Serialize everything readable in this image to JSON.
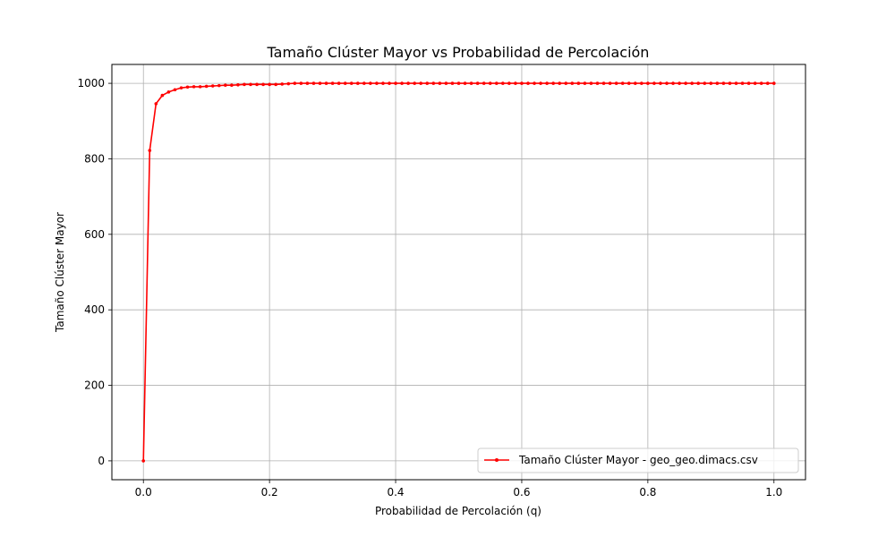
{
  "chart_data": {
    "type": "line",
    "title": "Tamaño Clúster Mayor vs Probabilidad de Percolación",
    "xlabel": "Probabilidad de Percolación (q)",
    "ylabel": "Tamaño Clúster Mayor",
    "xlim": [
      -0.05,
      1.05
    ],
    "ylim": [
      -50,
      1050
    ],
    "xticks": [
      0.0,
      0.2,
      0.4,
      0.6,
      0.8,
      1.0
    ],
    "xtick_labels": [
      "0.0",
      "0.2",
      "0.4",
      "0.6",
      "0.8",
      "1.0"
    ],
    "yticks": [
      0,
      200,
      400,
      600,
      800,
      1000
    ],
    "ytick_labels": [
      "0",
      "200",
      "400",
      "600",
      "800",
      "1000"
    ],
    "grid": true,
    "legend_position": "bottom-right",
    "series": [
      {
        "name": "Tamaño Clúster Mayor - geo_geo.dimacs.csv",
        "color": "#ff0000",
        "marker": "dot",
        "x": [
          0.0,
          0.01,
          0.02,
          0.03,
          0.04,
          0.05,
          0.06,
          0.07,
          0.08,
          0.09,
          0.1,
          0.11,
          0.12,
          0.13,
          0.14,
          0.15,
          0.16,
          0.17,
          0.18,
          0.19,
          0.2,
          0.21,
          0.22,
          0.23,
          0.24,
          0.25,
          0.26,
          0.27,
          0.28,
          0.29,
          0.3,
          0.31,
          0.32,
          0.33,
          0.34,
          0.35,
          0.36,
          0.37,
          0.38,
          0.39,
          0.4,
          0.41,
          0.42,
          0.43,
          0.44,
          0.45,
          0.46,
          0.47,
          0.48,
          0.49,
          0.5,
          0.51,
          0.52,
          0.53,
          0.54,
          0.55,
          0.56,
          0.57,
          0.58,
          0.59,
          0.6,
          0.61,
          0.62,
          0.63,
          0.64,
          0.65,
          0.66,
          0.67,
          0.68,
          0.69,
          0.7,
          0.71,
          0.72,
          0.73,
          0.74,
          0.75,
          0.76,
          0.77,
          0.78,
          0.79,
          0.8,
          0.81,
          0.82,
          0.83,
          0.84,
          0.85,
          0.86,
          0.87,
          0.88,
          0.89,
          0.9,
          0.91,
          0.92,
          0.93,
          0.94,
          0.95,
          0.96,
          0.97,
          0.98,
          0.99,
          1.0
        ],
        "y": [
          0,
          822,
          946,
          968,
          977,
          983,
          988,
          990,
          991,
          991,
          992,
          993,
          994,
          995,
          995,
          996,
          997,
          997,
          997,
          997,
          997,
          997,
          998,
          999,
          1000,
          1000,
          1000,
          1000,
          1000,
          1000,
          1000,
          1000,
          1000,
          1000,
          1000,
          1000,
          1000,
          1000,
          1000,
          1000,
          1000,
          1000,
          1000,
          1000,
          1000,
          1000,
          1000,
          1000,
          1000,
          1000,
          1000,
          1000,
          1000,
          1000,
          1000,
          1000,
          1000,
          1000,
          1000,
          1000,
          1000,
          1000,
          1000,
          1000,
          1000,
          1000,
          1000,
          1000,
          1000,
          1000,
          1000,
          1000,
          1000,
          1000,
          1000,
          1000,
          1000,
          1000,
          1000,
          1000,
          1000,
          1000,
          1000,
          1000,
          1000,
          1000,
          1000,
          1000,
          1000,
          1000,
          1000,
          1000,
          1000,
          1000,
          1000,
          1000,
          1000,
          1000,
          1000,
          1000,
          1000
        ]
      }
    ]
  }
}
